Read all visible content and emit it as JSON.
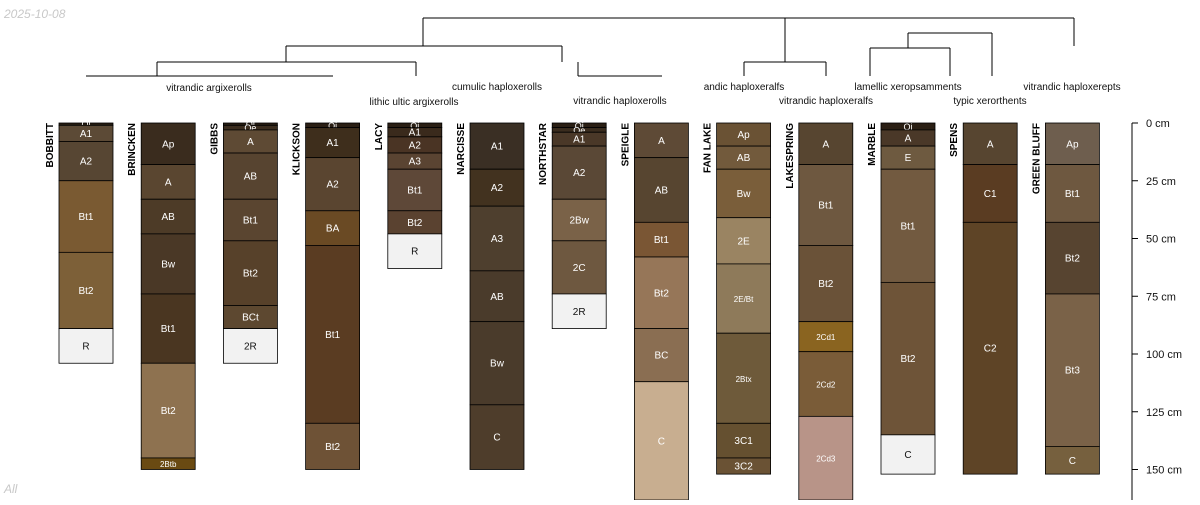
{
  "date": "2025-10-08",
  "subset": "All",
  "depth_axis": {
    "unit": "cm",
    "max_depth": 160,
    "ticks": [
      "0 cm",
      "25 cm",
      "50 cm",
      "75 cm",
      "100 cm",
      "125 cm",
      "150 cm"
    ],
    "tick_values": [
      0,
      25,
      50,
      75,
      100,
      125,
      150
    ]
  },
  "taxa": [
    "vitrandic argixerolls",
    "lithic ultic argixerolls",
    "cumulic haploxerolls",
    "vitrandic haploxerolls",
    "andic haploxeralfs",
    "vitrandic haploxeralfs",
    "lamellic xeropsamments",
    "typic xerorthents",
    "vitrandic haploxerepts"
  ],
  "profiles": [
    {
      "name": "BOBBITT",
      "horizons": [
        {
          "name": "Oi",
          "top": 0,
          "bottom": 1,
          "color": "#2a1f14"
        },
        {
          "name": "A1",
          "top": 1,
          "bottom": 8,
          "color": "#5c4a36"
        },
        {
          "name": "A2",
          "top": 8,
          "bottom": 25,
          "color": "#574633"
        },
        {
          "name": "Bt1",
          "top": 25,
          "bottom": 56,
          "color": "#7a5a32"
        },
        {
          "name": "Bt2",
          "top": 56,
          "bottom": 89,
          "color": "#7d6038"
        },
        {
          "name": "R",
          "top": 89,
          "bottom": 104,
          "color": "#f2f2f2"
        }
      ]
    },
    {
      "name": "BRINCKEN",
      "horizons": [
        {
          "name": "Ap",
          "top": 0,
          "bottom": 18,
          "color": "#3a2c1e"
        },
        {
          "name": "A",
          "top": 18,
          "bottom": 33,
          "color": "#5a4630"
        },
        {
          "name": "AB",
          "top": 33,
          "bottom": 48,
          "color": "#4d3b27"
        },
        {
          "name": "Bw",
          "top": 48,
          "bottom": 74,
          "color": "#4a3826"
        },
        {
          "name": "Bt1",
          "top": 74,
          "bottom": 104,
          "color": "#4a3621"
        },
        {
          "name": "Bt2",
          "top": 104,
          "bottom": 145,
          "color": "#8e7250"
        },
        {
          "name": "2Btb",
          "top": 145,
          "bottom": 150,
          "color": "#6a4a12"
        }
      ]
    },
    {
      "name": "GIBBS",
      "horizons": [
        {
          "name": "Oi",
          "top": 0,
          "bottom": 1,
          "color": "#2a1f14"
        },
        {
          "name": "Oe",
          "top": 1,
          "bottom": 3,
          "color": "#3a2c1e"
        },
        {
          "name": "A",
          "top": 3,
          "bottom": 13,
          "color": "#5e4a34"
        },
        {
          "name": "AB",
          "top": 13,
          "bottom": 33,
          "color": "#574430"
        },
        {
          "name": "Bt1",
          "top": 33,
          "bottom": 51,
          "color": "#5a4530"
        },
        {
          "name": "Bt2",
          "top": 51,
          "bottom": 79,
          "color": "#57412a"
        },
        {
          "name": "BCt",
          "top": 79,
          "bottom": 89,
          "color": "#5d4830"
        },
        {
          "name": "2R",
          "top": 89,
          "bottom": 104,
          "color": "#f2f2f2"
        }
      ]
    },
    {
      "name": "KLICKSON",
      "horizons": [
        {
          "name": "Oi",
          "top": 0,
          "bottom": 2,
          "color": "#2a1f14"
        },
        {
          "name": "A1",
          "top": 2,
          "bottom": 15,
          "color": "#3e2e1c"
        },
        {
          "name": "A2",
          "top": 15,
          "bottom": 38,
          "color": "#5a4530"
        },
        {
          "name": "BA",
          "top": 38,
          "bottom": 53,
          "color": "#6a4a24"
        },
        {
          "name": "Bt1",
          "top": 53,
          "bottom": 130,
          "color": "#5a3c22"
        },
        {
          "name": "Bt2",
          "top": 130,
          "bottom": 150,
          "color": "#6e5236"
        }
      ]
    },
    {
      "name": "LACY",
      "horizons": [
        {
          "name": "Oi",
          "top": 0,
          "bottom": 2,
          "color": "#2a1f14"
        },
        {
          "name": "A1",
          "top": 2,
          "bottom": 6,
          "color": "#3a2a1c"
        },
        {
          "name": "A2",
          "top": 6,
          "bottom": 13,
          "color": "#4a3424"
        },
        {
          "name": "A3",
          "top": 13,
          "bottom": 20,
          "color": "#5a4432"
        },
        {
          "name": "Bt1",
          "top": 20,
          "bottom": 38,
          "color": "#5e4838"
        },
        {
          "name": "Bt2",
          "top": 38,
          "bottom": 48,
          "color": "#5a4230"
        },
        {
          "name": "R",
          "top": 48,
          "bottom": 63,
          "color": "#f2f2f2"
        }
      ]
    },
    {
      "name": "NARCISSE",
      "horizons": [
        {
          "name": "A1",
          "top": 0,
          "bottom": 20,
          "color": "#3a2f24"
        },
        {
          "name": "A2",
          "top": 20,
          "bottom": 36,
          "color": "#42321f"
        },
        {
          "name": "A3",
          "top": 36,
          "bottom": 64,
          "color": "#4e3f2e"
        },
        {
          "name": "AB",
          "top": 64,
          "bottom": 86,
          "color": "#4a3b2b"
        },
        {
          "name": "Bw",
          "top": 86,
          "bottom": 122,
          "color": "#4a3b2b"
        },
        {
          "name": "C",
          "top": 122,
          "bottom": 150,
          "color": "#4e3d2b"
        }
      ]
    },
    {
      "name": "NORTHSTAR",
      "horizons": [
        {
          "name": "Oi",
          "top": 0,
          "bottom": 2,
          "color": "#2a1f14"
        },
        {
          "name": "Oe",
          "top": 2,
          "bottom": 4,
          "color": "#3a2c1e"
        },
        {
          "name": "A1",
          "top": 4,
          "bottom": 10,
          "color": "#4a3828"
        },
        {
          "name": "A2",
          "top": 10,
          "bottom": 33,
          "color": "#5a4836"
        },
        {
          "name": "2Bw",
          "top": 33,
          "bottom": 51,
          "color": "#7a6248"
        },
        {
          "name": "2C",
          "top": 51,
          "bottom": 74,
          "color": "#6e5840"
        },
        {
          "name": "2R",
          "top": 74,
          "bottom": 89,
          "color": "#f2f2f2"
        }
      ]
    },
    {
      "name": "SPEIGLE",
      "horizons": [
        {
          "name": "A",
          "top": 0,
          "bottom": 15,
          "color": "#5e4a36"
        },
        {
          "name": "AB",
          "top": 15,
          "bottom": 43,
          "color": "#574530"
        },
        {
          "name": "Bt1",
          "top": 43,
          "bottom": 58,
          "color": "#7a5634"
        },
        {
          "name": "Bt2",
          "top": 58,
          "bottom": 89,
          "color": "#967658"
        },
        {
          "name": "BC",
          "top": 89,
          "bottom": 112,
          "color": "#8a6e52"
        },
        {
          "name": "C",
          "top": 112,
          "bottom": 165,
          "color": "#c8ae90"
        }
      ]
    },
    {
      "name": "FAN LAKE",
      "horizons": [
        {
          "name": "Ap",
          "top": 0,
          "bottom": 10,
          "color": "#6a5234"
        },
        {
          "name": "AB",
          "top": 10,
          "bottom": 20,
          "color": "#725a3c"
        },
        {
          "name": "Bw",
          "top": 20,
          "bottom": 41,
          "color": "#7a5e3a"
        },
        {
          "name": "2E",
          "top": 41,
          "bottom": 61,
          "color": "#9a8462"
        },
        {
          "name": "2E/Bt",
          "top": 61,
          "bottom": 91,
          "color": "#8e7a5a"
        },
        {
          "name": "2Btx",
          "top": 91,
          "bottom": 130,
          "color": "#6e5a3a"
        },
        {
          "name": "3C1",
          "top": 130,
          "bottom": 145,
          "color": "#655030"
        },
        {
          "name": "3C2",
          "top": 145,
          "bottom": 152,
          "color": "#6a5234"
        }
      ]
    },
    {
      "name": "LAKESPRING",
      "horizons": [
        {
          "name": "A",
          "top": 0,
          "bottom": 18,
          "color": "#574530"
        },
        {
          "name": "Bt1",
          "top": 18,
          "bottom": 53,
          "color": "#6e5840"
        },
        {
          "name": "Bt2",
          "top": 53,
          "bottom": 86,
          "color": "#6a5238"
        },
        {
          "name": "2Cd1",
          "top": 86,
          "bottom": 99,
          "color": "#8a6420"
        },
        {
          "name": "2Cd2",
          "top": 99,
          "bottom": 127,
          "color": "#7a5c38"
        },
        {
          "name": "2Cd3",
          "top": 127,
          "bottom": 165,
          "color": "#b89488"
        }
      ]
    },
    {
      "name": "MARBLE",
      "horizons": [
        {
          "name": "Oi",
          "top": 0,
          "bottom": 3,
          "color": "#2a1f14"
        },
        {
          "name": "A",
          "top": 3,
          "bottom": 10,
          "color": "#4a3828"
        },
        {
          "name": "E",
          "top": 10,
          "bottom": 20,
          "color": "#6e5a40"
        },
        {
          "name": "Bt1",
          "top": 20,
          "bottom": 69,
          "color": "#725a40"
        },
        {
          "name": "Bt2",
          "top": 69,
          "bottom": 135,
          "color": "#6e5438"
        },
        {
          "name": "C",
          "top": 135,
          "bottom": 152,
          "color": "#f2f2f2"
        }
      ]
    },
    {
      "name": "SPENS",
      "horizons": [
        {
          "name": "A",
          "top": 0,
          "bottom": 18,
          "color": "#574530"
        },
        {
          "name": "C1",
          "top": 18,
          "bottom": 43,
          "color": "#5a3c22"
        },
        {
          "name": "C2",
          "top": 43,
          "bottom": 152,
          "color": "#5e4426"
        }
      ]
    },
    {
      "name": "GREEN BLUFF",
      "horizons": [
        {
          "name": "Ap",
          "top": 0,
          "bottom": 18,
          "color": "#6e5e4e"
        },
        {
          "name": "Bt1",
          "top": 18,
          "bottom": 43,
          "color": "#6e5840"
        },
        {
          "name": "Bt2",
          "top": 43,
          "bottom": 74,
          "color": "#574430"
        },
        {
          "name": "Bt3",
          "top": 74,
          "bottom": 140,
          "color": "#7a6248"
        },
        {
          "name": "C",
          "top": 140,
          "bottom": 152,
          "color": "#76603e"
        }
      ]
    }
  ]
}
